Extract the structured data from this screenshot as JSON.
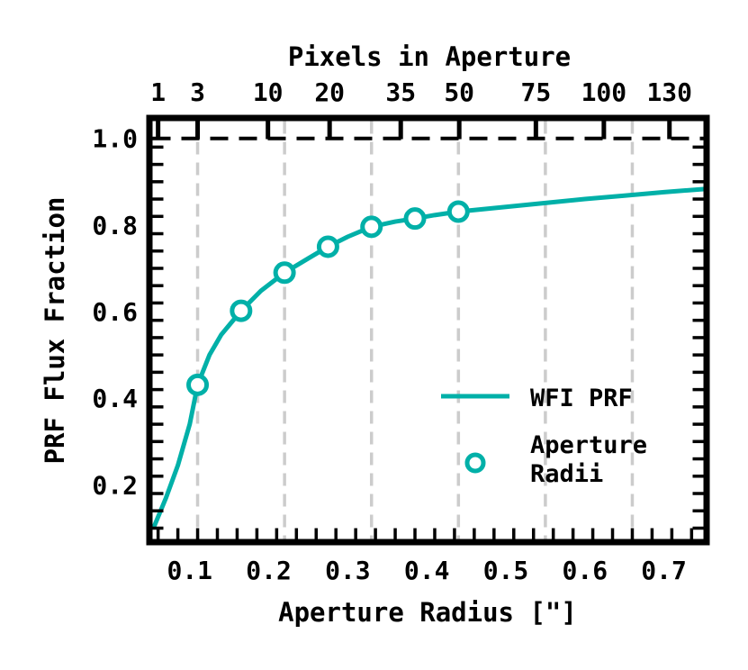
{
  "chart_data": {
    "type": "line",
    "title": "",
    "xlabel": "Aperture Radius [\"]",
    "ylabel": "PRF Flux Fraction",
    "top_xlabel": "Pixels in Aperture",
    "xlim": [
      0.053,
      0.75
    ],
    "ylim": [
      0.075,
      1.04
    ],
    "xticks": [
      0.1,
      0.2,
      0.3,
      0.4,
      0.5,
      0.6,
      0.7
    ],
    "xtick_labels": [
      "0.1",
      "0.2",
      "0.3",
      "0.4",
      "0.5",
      "0.6",
      "0.7"
    ],
    "yticks": [
      0.2,
      0.4,
      0.6,
      0.8,
      1.0
    ],
    "ytick_labels": [
      "0.2",
      "0.4",
      "0.6",
      "0.8",
      "1.0"
    ],
    "top_ticks": [
      {
        "x": 0.06,
        "label": "1"
      },
      {
        "x": 0.11,
        "label": "3"
      },
      {
        "x": 0.199,
        "label": "10"
      },
      {
        "x": 0.277,
        "label": "20"
      },
      {
        "x": 0.367,
        "label": "35"
      },
      {
        "x": 0.441,
        "label": "50"
      },
      {
        "x": 0.538,
        "label": "75"
      },
      {
        "x": 0.624,
        "label": "100"
      },
      {
        "x": 0.707,
        "label": "130"
      }
    ],
    "reference_line": {
      "y": 1.0,
      "style": "dashed",
      "color": "#000000"
    },
    "grid_vertical": [
      0.11,
      0.22,
      0.33,
      0.44,
      0.55,
      0.66
    ],
    "grid_color": "#cccccc",
    "legend": {
      "position": "lower right",
      "entries": [
        "WFI PRF",
        "Aperture\nRadii"
      ]
    },
    "series": [
      {
        "name": "WFI PRF",
        "kind": "line",
        "color": "#00b0a8",
        "x": [
          0.055,
          0.07,
          0.085,
          0.1,
          0.11,
          0.125,
          0.14,
          0.165,
          0.19,
          0.22,
          0.25,
          0.275,
          0.3,
          0.33,
          0.36,
          0.385,
          0.41,
          0.44,
          0.5,
          0.55,
          0.6,
          0.65,
          0.7,
          0.75
        ],
        "values": [
          0.104,
          0.17,
          0.245,
          0.34,
          0.431,
          0.5,
          0.547,
          0.602,
          0.648,
          0.69,
          0.723,
          0.75,
          0.773,
          0.796,
          0.808,
          0.815,
          0.823,
          0.831,
          0.842,
          0.851,
          0.86,
          0.868,
          0.876,
          0.883
        ]
      },
      {
        "name": "Aperture Radii",
        "kind": "scatter",
        "marker": "open-circle",
        "color": "#00b0a8",
        "x": [
          0.11,
          0.165,
          0.22,
          0.275,
          0.33,
          0.385,
          0.44
        ],
        "values": [
          0.431,
          0.602,
          0.69,
          0.75,
          0.796,
          0.815,
          0.831
        ]
      }
    ]
  }
}
